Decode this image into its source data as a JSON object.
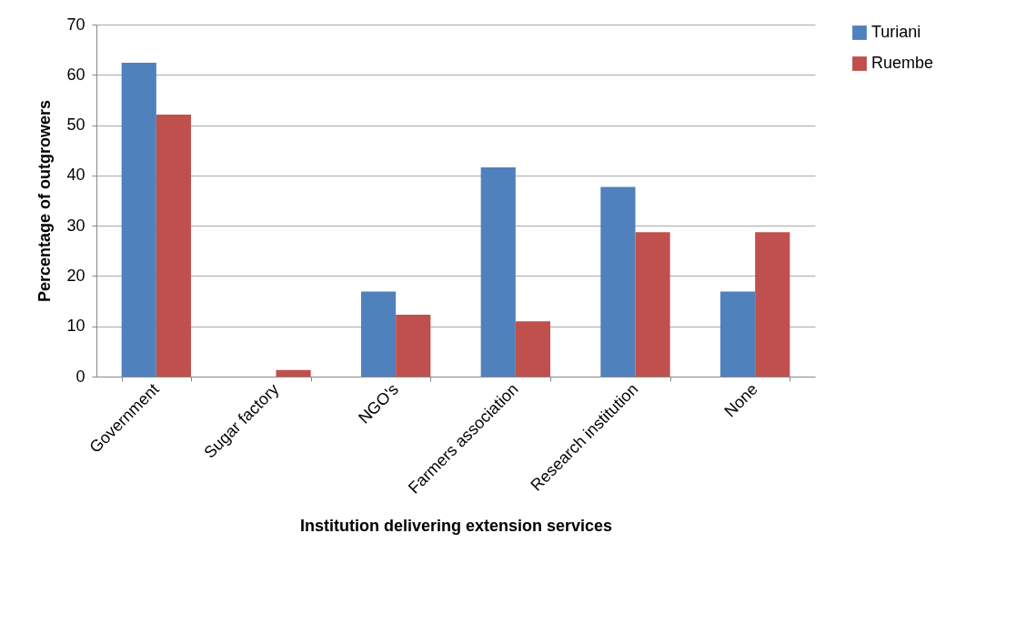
{
  "chart_data": {
    "type": "bar",
    "xlabel": "Institution delivering extension services",
    "ylabel": "Percentage of outgrowers",
    "categories": [
      "Government",
      "Sugar factory",
      "NGO's",
      "Farmers association",
      "Research institution",
      "None"
    ],
    "series": [
      {
        "name": "Turiani",
        "color": "#4f81bd",
        "values": [
          62.4,
          0,
          16.9,
          41.6,
          37.7,
          16.9
        ]
      },
      {
        "name": "Ruembe",
        "color": "#c0504d",
        "values": [
          52.1,
          1.3,
          12.3,
          11.0,
          28.7,
          28.7
        ]
      }
    ],
    "ylim": [
      0,
      70
    ],
    "yticks": [
      0,
      10,
      20,
      30,
      40,
      50,
      60,
      70
    ],
    "grid": "y",
    "legend": "right"
  }
}
